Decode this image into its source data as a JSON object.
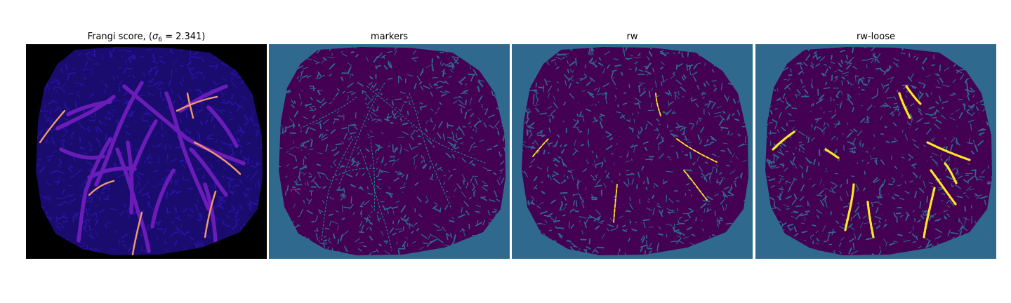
{
  "figure": {
    "panels": [
      {
        "id": "frangi",
        "title_prefix": "Frangi score, (",
        "title_sigma": "σ",
        "title_sub": "6",
        "title_suffix": " = 2.341)",
        "background": "#000000",
        "tissue_color": "#1a0c6e",
        "texture_color": "#2b12a6",
        "vessel_color": "#6a1cb8",
        "highlight_color": "#f39a6a"
      },
      {
        "id": "markers",
        "title": "markers",
        "background": "#2f6a8e",
        "tissue_color": "#440154",
        "texture_color": "#2f6a8e"
      },
      {
        "id": "rw",
        "title": "rw",
        "background": "#2f6a8e",
        "tissue_color": "#440154",
        "texture_color": "#2f6a8e",
        "segment_color": "#fde725"
      },
      {
        "id": "rw-loose",
        "title": "rw-loose",
        "background": "#2f6a8e",
        "tissue_color": "#440154",
        "texture_color": "#2f6a8e",
        "segment_color": "#fde725"
      }
    ]
  }
}
